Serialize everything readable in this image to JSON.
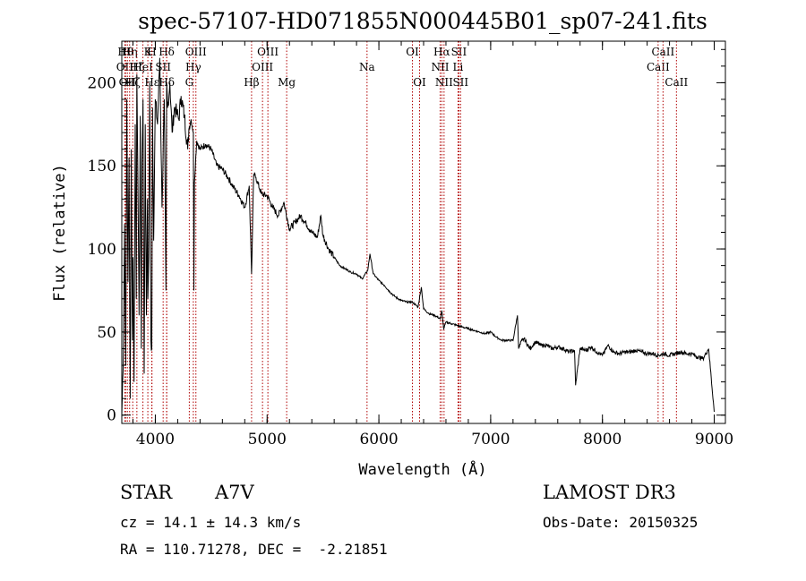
{
  "colors": {
    "axis": "#000000",
    "spectrum": "#000000",
    "line_marker": "#b00000"
  },
  "chart_data": {
    "type": "line",
    "title": "spec-57107-HD071855N000445B01_sp07-241.fits",
    "xlabel": "Wavelength (Å)",
    "ylabel": "Flux (relative)",
    "xlim": [
      3700,
      9100
    ],
    "ylim": [
      -5,
      225
    ],
    "xticks": [
      4000,
      5000,
      6000,
      7000,
      8000,
      9000
    ],
    "yticks": [
      0,
      50,
      100,
      150,
      200
    ],
    "x_minor_step": 200,
    "y_minor_step": 10,
    "series": [
      {
        "name": "spectrum",
        "x": [
          3700,
          3715,
          3725,
          3735,
          3745,
          3755,
          3765,
          3775,
          3785,
          3795,
          3800,
          3810,
          3820,
          3830,
          3835,
          3845,
          3855,
          3865,
          3875,
          3880,
          3890,
          3900,
          3910,
          3920,
          3930,
          3933,
          3940,
          3950,
          3960,
          3968,
          3975,
          3985,
          4000,
          4020,
          4040,
          4060,
          4080,
          4095,
          4101,
          4110,
          4130,
          4150,
          4170,
          4190,
          4210,
          4230,
          4260,
          4290,
          4300,
          4320,
          4340,
          4345,
          4350,
          4370,
          4400,
          4450,
          4500,
          4550,
          4600,
          4650,
          4700,
          4750,
          4800,
          4840,
          4861,
          4880,
          4900,
          4950,
          5000,
          5050,
          5100,
          5150,
          5200,
          5250,
          5300,
          5350,
          5400,
          5450,
          5480,
          5500,
          5550,
          5600,
          5650,
          5700,
          5750,
          5800,
          5850,
          5900,
          5920,
          5950,
          6000,
          6050,
          6100,
          6150,
          6200,
          6250,
          6300,
          6350,
          6380,
          6400,
          6450,
          6500,
          6550,
          6563,
          6580,
          6600,
          6650,
          6700,
          6750,
          6800,
          6850,
          6900,
          6950,
          7000,
          7050,
          7100,
          7150,
          7200,
          7240,
          7250,
          7280,
          7300,
          7350,
          7400,
          7450,
          7500,
          7550,
          7600,
          7650,
          7700,
          7750,
          7760,
          7800,
          7850,
          7900,
          7950,
          8000,
          8050,
          8100,
          8150,
          8200,
          8250,
          8300,
          8350,
          8400,
          8450,
          8500,
          8550,
          8600,
          8650,
          8700,
          8750,
          8800,
          8850,
          8900,
          8950,
          9000
        ],
        "y": [
          0,
          40,
          115,
          30,
          190,
          80,
          155,
          10,
          160,
          45,
          95,
          20,
          175,
          70,
          205,
          135,
          60,
          180,
          40,
          150,
          190,
          25,
          175,
          60,
          130,
          70,
          95,
          200,
          45,
          40,
          185,
          105,
          190,
          175,
          215,
          125,
          190,
          75,
          200,
          185,
          200,
          170,
          185,
          182,
          178,
          192,
          180,
          160,
          172,
          178,
          170,
          75,
          140,
          165,
          160,
          163,
          160,
          150,
          148,
          143,
          137,
          132,
          125,
          138,
          85,
          145,
          143,
          133,
          132,
          125,
          120,
          128,
          112,
          116,
          120,
          115,
          110,
          107,
          120,
          108,
          100,
          95,
          90,
          88,
          86,
          85,
          82,
          87,
          97,
          85,
          81,
          78,
          74,
          71,
          69,
          68,
          68,
          65,
          77,
          64,
          61,
          60,
          58,
          63,
          52,
          56,
          55,
          54,
          53,
          52,
          51,
          50,
          49,
          50,
          47,
          45,
          45,
          45,
          60,
          40,
          45,
          46,
          40,
          44,
          42,
          42,
          40,
          41,
          40,
          38,
          39,
          18,
          40,
          39,
          41,
          38,
          36,
          42,
          38,
          37,
          38,
          38,
          39,
          38,
          37,
          37,
          36,
          37,
          36,
          37,
          38,
          37,
          37,
          35,
          34,
          40,
          2
        ]
      }
    ],
    "line_markers": [
      {
        "x": 3727,
        "label": "OII",
        "row": 2
      },
      {
        "x": 3734,
        "label": "Hθ",
        "row": 1
      },
      {
        "x": 3750,
        "label": "OII",
        "row": 3
      },
      {
        "x": 3770,
        "label": "Hη",
        "row": 1
      },
      {
        "x": 3798,
        "label": "Hζ",
        "row": 3
      },
      {
        "x": 3835,
        "label": "Hζ",
        "row": 2
      },
      {
        "x": 3889,
        "label": "HeI",
        "row": 2
      },
      {
        "x": 3933,
        "label": "K",
        "row": 1
      },
      {
        "x": 3968,
        "label": "H",
        "row": 1
      },
      {
        "x": 3970,
        "label": "Hε",
        "row": 3
      },
      {
        "x": 4070,
        "label": "SII",
        "row": 2
      },
      {
        "x": 4101,
        "label": "Hδ",
        "row": 1
      },
      {
        "x": 4102,
        "label": "Hδ",
        "row": 3
      },
      {
        "x": 4304,
        "label": "G",
        "row": 3
      },
      {
        "x": 4340,
        "label": "Hγ",
        "row": 2
      },
      {
        "x": 4363,
        "label": "OIII",
        "row": 1
      },
      {
        "x": 4861,
        "label": "Hβ",
        "row": 3
      },
      {
        "x": 4959,
        "label": "OIII",
        "row": 2
      },
      {
        "x": 5007,
        "label": "OIII",
        "row": 1
      },
      {
        "x": 5175,
        "label": "Mg",
        "row": 3
      },
      {
        "x": 5894,
        "label": "Na",
        "row": 2
      },
      {
        "x": 6300,
        "label": "OI",
        "row": 1
      },
      {
        "x": 6364,
        "label": "OI",
        "row": 3
      },
      {
        "x": 6548,
        "label": "NII",
        "row": 2
      },
      {
        "x": 6563,
        "label": "Hα",
        "row": 1
      },
      {
        "x": 6583,
        "label": "NII",
        "row": 3
      },
      {
        "x": 6708,
        "label": "Li",
        "row": 2
      },
      {
        "x": 6716,
        "label": "SII",
        "row": 1
      },
      {
        "x": 6731,
        "label": "SII",
        "row": 3
      },
      {
        "x": 8498,
        "label": "CaII",
        "row": 2
      },
      {
        "x": 8542,
        "label": "CaII",
        "row": 1
      },
      {
        "x": 8662,
        "label": "CaII",
        "row": 3
      }
    ]
  },
  "info": {
    "object_class": "STAR",
    "subclass": "A7V",
    "survey": "LAMOST DR3",
    "redshift": "cz = 14.1 ± 14.3 km/s",
    "obs_date": "Obs-Date: 20150325",
    "coords": "RA = 110.71278, DEC =  -2.21851"
  }
}
